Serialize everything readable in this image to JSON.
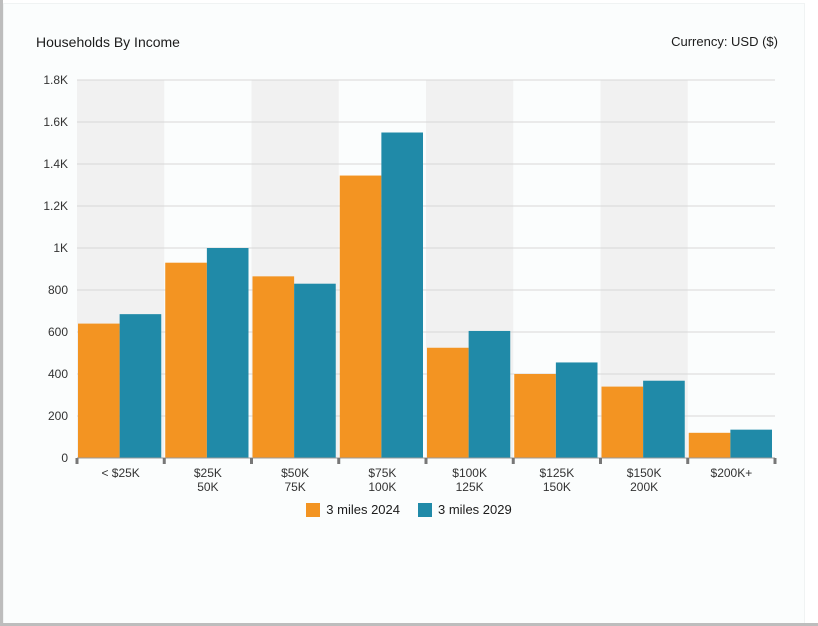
{
  "header": {
    "title": "Households By Income",
    "currency": "Currency: USD ($)"
  },
  "colors": {
    "series_2024": "#f39422",
    "series_2029": "#208aa8",
    "band_shade": "#f1f1f1",
    "grid": "#d8d8d8"
  },
  "chart_data": {
    "type": "bar",
    "title": "Households By Income",
    "categories": [
      [
        "< $25K"
      ],
      [
        "$25K",
        "50K"
      ],
      [
        "$50K",
        "75K"
      ],
      [
        "$75K",
        "100K"
      ],
      [
        "$100K",
        "125K"
      ],
      [
        "$125K",
        "150K"
      ],
      [
        "$150K",
        "200K"
      ],
      [
        "$200K+"
      ]
    ],
    "series": [
      {
        "name": "3 miles 2024",
        "values": [
          640,
          930,
          865,
          1345,
          525,
          400,
          340,
          120
        ]
      },
      {
        "name": "3 miles 2029",
        "values": [
          685,
          1000,
          830,
          1550,
          605,
          455,
          368,
          135
        ]
      }
    ],
    "ylim": [
      0,
      1800
    ],
    "yticks": [
      {
        "value": 0,
        "label": "0"
      },
      {
        "value": 200,
        "label": "200"
      },
      {
        "value": 400,
        "label": "400"
      },
      {
        "value": 600,
        "label": "600"
      },
      {
        "value": 800,
        "label": "800"
      },
      {
        "value": 1000,
        "label": "1K"
      },
      {
        "value": 1200,
        "label": "1.2K"
      },
      {
        "value": 1400,
        "label": "1.4K"
      },
      {
        "value": 1600,
        "label": "1.6K"
      },
      {
        "value": 1800,
        "label": "1.8K"
      }
    ],
    "grid": true,
    "legend": "bottom-center"
  }
}
